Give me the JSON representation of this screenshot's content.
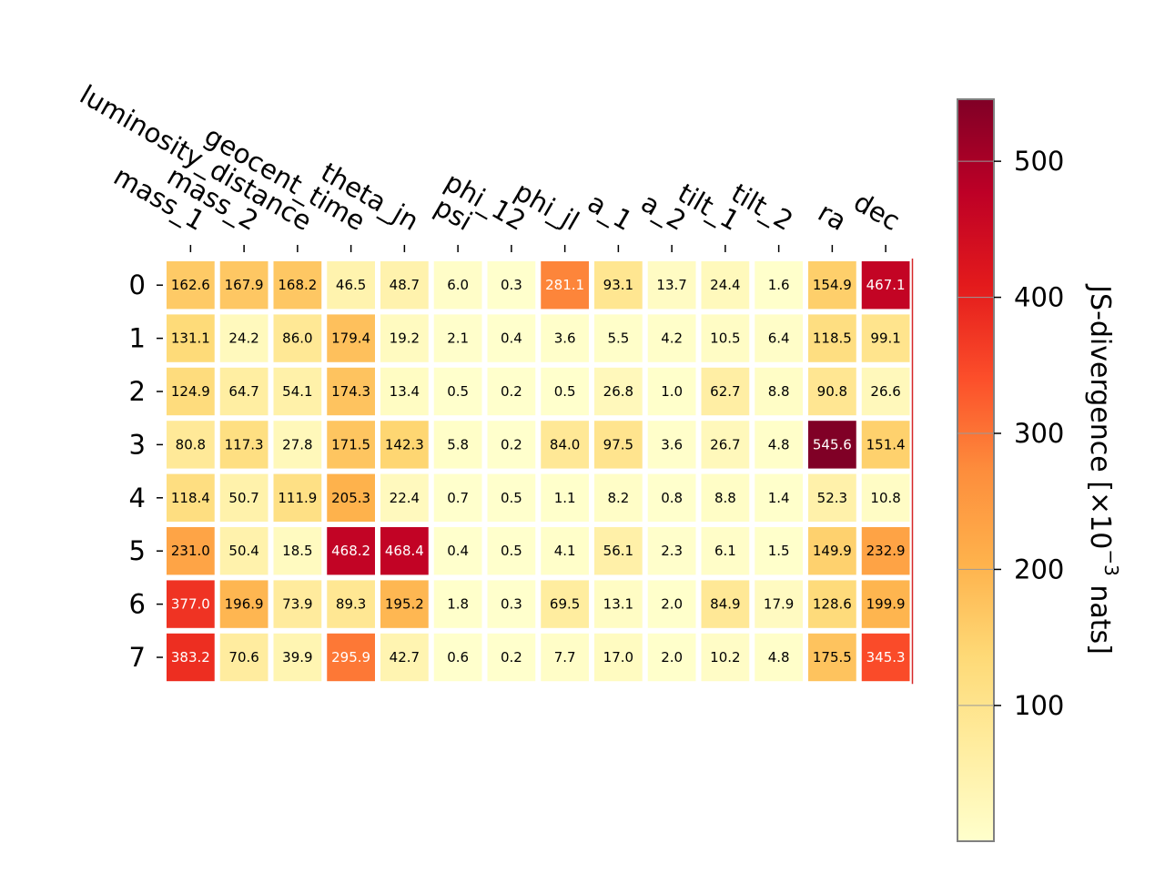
{
  "chart_data": {
    "type": "heatmap",
    "columns": [
      "mass_1",
      "mass_2",
      "luminosity_distance",
      "geocent_time",
      "theta_jn",
      "psi",
      "phi_12",
      "phi_jl",
      "a_1",
      "a_2",
      "tilt_1",
      "tilt_2",
      "ra",
      "dec"
    ],
    "rows": [
      "0",
      "1",
      "2",
      "3",
      "4",
      "5",
      "6",
      "7"
    ],
    "values": [
      [
        162.6,
        167.9,
        168.2,
        46.5,
        48.7,
        6.0,
        0.3,
        281.1,
        93.1,
        13.7,
        24.4,
        1.6,
        154.9,
        467.1
      ],
      [
        131.1,
        24.2,
        86.0,
        179.4,
        19.2,
        2.1,
        0.4,
        3.6,
        5.5,
        4.2,
        10.5,
        6.4,
        118.5,
        99.1
      ],
      [
        124.9,
        64.7,
        54.1,
        174.3,
        13.4,
        0.5,
        0.2,
        0.5,
        26.8,
        1.0,
        62.7,
        8.8,
        90.8,
        26.6
      ],
      [
        80.8,
        117.3,
        27.8,
        171.5,
        142.3,
        5.8,
        0.2,
        84.0,
        97.5,
        3.6,
        26.7,
        4.8,
        545.6,
        151.4
      ],
      [
        118.4,
        50.7,
        111.9,
        205.3,
        22.4,
        0.7,
        0.5,
        1.1,
        8.2,
        0.8,
        8.8,
        1.4,
        52.3,
        10.8
      ],
      [
        231.0,
        50.4,
        18.5,
        468.2,
        468.4,
        0.4,
        0.5,
        4.1,
        56.1,
        2.3,
        6.1,
        1.5,
        149.9,
        232.9
      ],
      [
        377.0,
        196.9,
        73.9,
        89.3,
        195.2,
        1.8,
        0.3,
        69.5,
        13.1,
        2.0,
        84.9,
        17.9,
        128.6,
        199.9
      ],
      [
        383.2,
        70.6,
        39.9,
        295.9,
        42.7,
        0.6,
        0.2,
        7.7,
        17.0,
        2.0,
        10.2,
        4.8,
        175.5,
        345.3
      ]
    ],
    "colormap": "YlOrRd",
    "vmin": 0.2,
    "vmax": 545.6,
    "colorbar": {
      "label": "JS-divergence [×10$^{-3}$ nats]",
      "label_main": "JS-divergence [×10",
      "label_exp": "−3",
      "label_unit": " nats]",
      "ticks": [
        100,
        200,
        300,
        400,
        500
      ],
      "tick_labels": [
        "100",
        "200",
        "300",
        "400",
        "500"
      ]
    }
  }
}
